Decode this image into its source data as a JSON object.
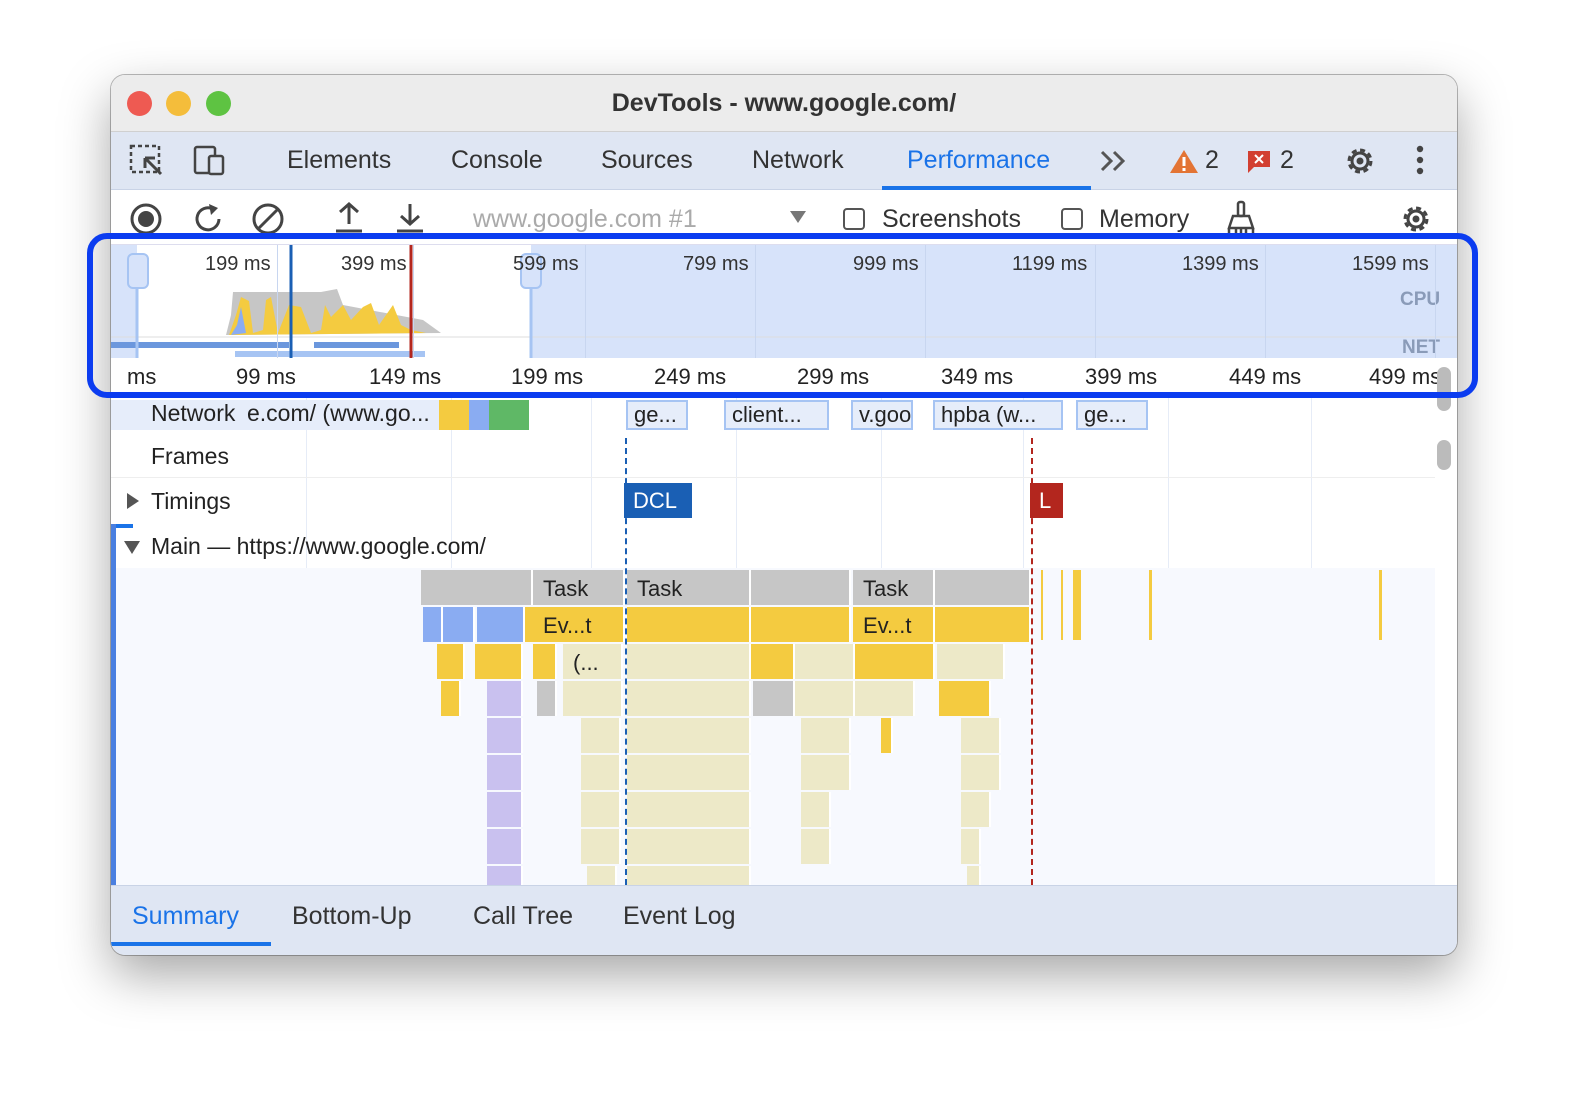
{
  "window": {
    "title": "DevTools - www.google.com/"
  },
  "tabs": [
    {
      "label": "Elements"
    },
    {
      "label": "Console"
    },
    {
      "label": "Sources"
    },
    {
      "label": "Network"
    },
    {
      "label": "Performance",
      "active": true
    }
  ],
  "badges": {
    "warnings": "2",
    "errors": "2"
  },
  "toolbar": {
    "recording_select": "www.google.com #1",
    "screenshots_label": "Screenshots",
    "screenshots_checked": false,
    "memory_label": "Memory",
    "memory_checked": false
  },
  "overview": {
    "time_labels": [
      "199 ms",
      "399 ms",
      "599 ms",
      "799 ms",
      "999 ms",
      "1199 ms",
      "1399 ms",
      "1599 ms"
    ],
    "cpu_label": "CPU",
    "net_label": "NET"
  },
  "ruler": {
    "labels": [
      "ms",
      "99 ms",
      "149 ms",
      "199 ms",
      "249 ms",
      "299 ms",
      "349 ms",
      "399 ms",
      "449 ms",
      "499 ms"
    ]
  },
  "tracks": {
    "network": {
      "label": "Network",
      "requests": [
        "e.com/ (www.go...",
        "ge...",
        "client...",
        "v.goo",
        "hpba (w...",
        "ge..."
      ]
    },
    "frames": {
      "label": "Frames"
    },
    "timings": {
      "label": "Timings",
      "markers": [
        {
          "label": "DCL",
          "color": "#1a5fb4"
        },
        {
          "label": "L",
          "color": "#b3261e"
        }
      ]
    },
    "main": {
      "label": "Main — https://www.google.com/",
      "tasks": [
        "Task",
        "Task",
        "Task"
      ],
      "events": [
        "Ev...t",
        "Ev...t"
      ],
      "sub": "(..."
    }
  },
  "bottom_tabs": [
    {
      "label": "Summary",
      "active": true
    },
    {
      "label": "Bottom-Up"
    },
    {
      "label": "Call Tree"
    },
    {
      "label": "Event Log"
    }
  ],
  "colors": {
    "accent": "#1a73e8",
    "highlight": "#0b3cf0",
    "scripting": "#f4cb40",
    "idle_script": "#ede9c8",
    "rendering": "#c9c1ef",
    "system": "#c6c6c6",
    "loading": "#8aacf2"
  }
}
